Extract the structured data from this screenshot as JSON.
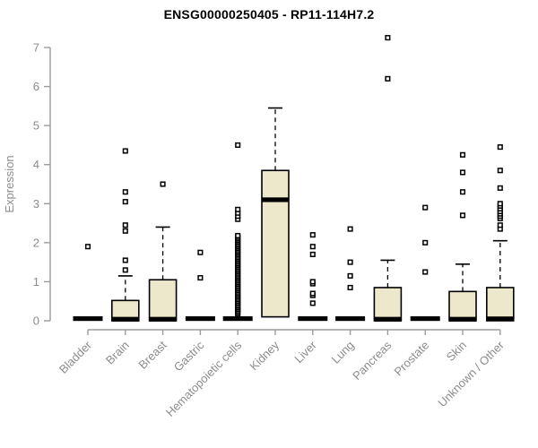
{
  "chart_data": {
    "type": "boxplot",
    "title": "ENSG00000250405 - RP11-114H7.2",
    "xlabel": "",
    "ylabel": "Expression",
    "ylim": [
      0,
      7
    ],
    "yticks": [
      0,
      1,
      2,
      3,
      4,
      5,
      6,
      7
    ],
    "grid": false,
    "legend": "none",
    "categories": [
      "Bladder",
      "Brain",
      "Breast",
      "Gastric",
      "Hematopoietic cells",
      "Kidney",
      "Liver",
      "Lung",
      "Pancreas",
      "Prostate",
      "Skin",
      "Unknown / Other"
    ],
    "series": [
      {
        "name": "Bladder",
        "q1": 0,
        "median": 0,
        "q3": 0,
        "whisker_low": 0,
        "whisker_high": 0,
        "outliers": [
          1.9
        ]
      },
      {
        "name": "Brain",
        "q1": 0,
        "median": 0.04,
        "q3": 0.52,
        "whisker_low": 0,
        "whisker_high": 1.15,
        "outliers": [
          1.3,
          1.55,
          2.3,
          2.45,
          3.05,
          3.3,
          4.35
        ]
      },
      {
        "name": "Breast",
        "q1": 0,
        "median": 0.04,
        "q3": 1.05,
        "whisker_low": 0,
        "whisker_high": 2.4,
        "outliers": [
          3.5
        ]
      },
      {
        "name": "Gastric",
        "q1": 0,
        "median": 0,
        "q3": 0,
        "whisker_low": 0,
        "whisker_high": 0,
        "outliers": [
          1.1,
          1.75
        ]
      },
      {
        "name": "Hematopoietic cells",
        "q1": 0,
        "median": 0,
        "q3": 0.04,
        "whisker_low": 0,
        "whisker_high": 0.04,
        "outliers": [
          0.18,
          0.22,
          0.26,
          0.3,
          0.34,
          0.38,
          0.42,
          0.46,
          0.5,
          0.54,
          0.58,
          0.62,
          0.66,
          0.7,
          0.74,
          0.78,
          0.82,
          0.86,
          0.9,
          0.94,
          0.98,
          1.02,
          1.06,
          1.1,
          1.14,
          1.18,
          1.22,
          1.26,
          1.3,
          1.34,
          1.38,
          1.42,
          1.46,
          1.5,
          1.54,
          1.58,
          1.62,
          1.66,
          1.7,
          1.74,
          1.78,
          1.82,
          1.86,
          1.9,
          1.94,
          1.98,
          2.02,
          2.06,
          2.1,
          2.14,
          2.18,
          2.6,
          2.68,
          2.76,
          2.85,
          4.5
        ]
      },
      {
        "name": "Kidney",
        "q1": 0.1,
        "median": 3.1,
        "q3": 3.85,
        "whisker_low": 0.1,
        "whisker_high": 5.45,
        "outliers": []
      },
      {
        "name": "Liver",
        "q1": 0,
        "median": 0,
        "q3": 0,
        "whisker_low": 0,
        "whisker_high": 0,
        "outliers": [
          0.45,
          0.65,
          0.7,
          0.95,
          1.0,
          1.7,
          1.9,
          2.2
        ]
      },
      {
        "name": "Lung",
        "q1": 0,
        "median": 0,
        "q3": 0,
        "whisker_low": 0,
        "whisker_high": 0,
        "outliers": [
          0.85,
          1.15,
          1.5,
          2.35
        ]
      },
      {
        "name": "Pancreas",
        "q1": 0,
        "median": 0.04,
        "q3": 0.85,
        "whisker_low": 0,
        "whisker_high": 1.55,
        "outliers": [
          6.2,
          7.25
        ]
      },
      {
        "name": "Prostate",
        "q1": 0,
        "median": 0,
        "q3": 0,
        "whisker_low": 0,
        "whisker_high": 0,
        "outliers": [
          1.25,
          2.0,
          2.9
        ]
      },
      {
        "name": "Skin",
        "q1": 0,
        "median": 0.04,
        "q3": 0.75,
        "whisker_low": 0,
        "whisker_high": 1.45,
        "outliers": [
          2.7,
          3.3,
          3.8,
          4.25
        ]
      },
      {
        "name": "Unknown / Other",
        "q1": 0,
        "median": 0.05,
        "q3": 0.85,
        "whisker_low": 0,
        "whisker_high": 2.05,
        "outliers": [
          2.35,
          2.45,
          2.62,
          2.68,
          2.74,
          2.8,
          2.87,
          2.94,
          3.0,
          3.4,
          3.85,
          4.45
        ]
      }
    ],
    "colors": {
      "box_fill": "#EDE8CC",
      "box_stroke": "#000000",
      "median": "#000000",
      "axis_line": "#9B9B9B",
      "axis_text": "#8C8C8C",
      "title_text": "#000000",
      "outlier_fill": "#FFFFFF",
      "outlier_stroke": "#000000",
      "background": "#FFFFFF"
    }
  }
}
